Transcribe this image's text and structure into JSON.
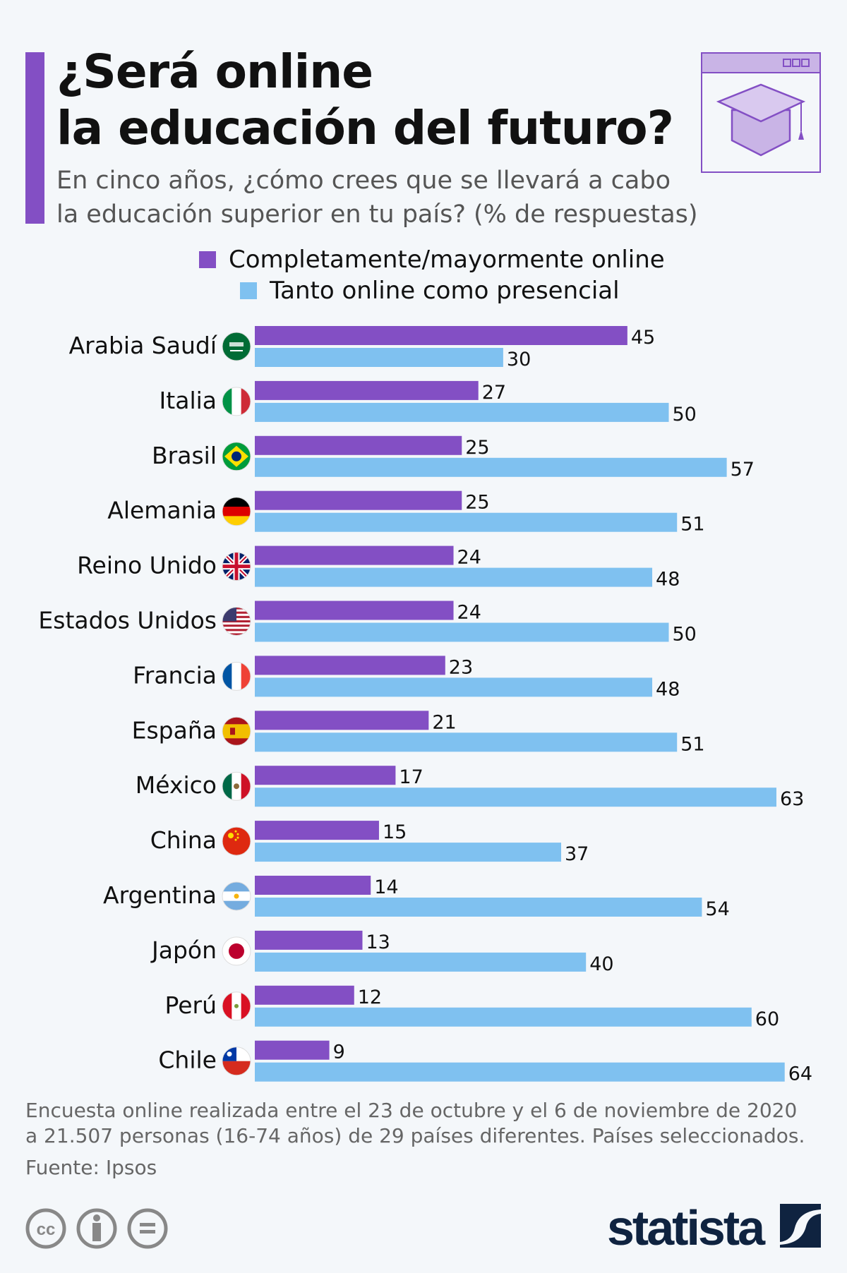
{
  "title_line1": "¿Será online",
  "title_line2": "la educación del futuro?",
  "subtitle_line1": "En cinco años, ¿cómo crees que se llevará a cabo",
  "subtitle_line2": "la educación superior en tu país? (% de respuestas)",
  "header_icon": "graduation-cap-browser-icon",
  "colors": {
    "online": "#834fc4",
    "hybrid": "#7fc1f0",
    "background": "#f4f7fa"
  },
  "chart_data": {
    "type": "bar",
    "orientation": "horizontal",
    "categories": [
      "Arabia Saudí",
      "Italia",
      "Brasil",
      "Alemania",
      "Reino Unido",
      "Estados Unidos",
      "Francia",
      "España",
      "México",
      "China",
      "Argentina",
      "Japón",
      "Perú",
      "Chile"
    ],
    "flags": [
      "saudi-arabia-flag-icon",
      "italy-flag-icon",
      "brazil-flag-icon",
      "germany-flag-icon",
      "uk-flag-icon",
      "usa-flag-icon",
      "france-flag-icon",
      "spain-flag-icon",
      "mexico-flag-icon",
      "china-flag-icon",
      "argentina-flag-icon",
      "japan-flag-icon",
      "peru-flag-icon",
      "chile-flag-icon"
    ],
    "series": [
      {
        "name": "Completamente/mayormente online",
        "color": "#834fc4",
        "values": [
          45,
          27,
          25,
          25,
          24,
          24,
          23,
          21,
          17,
          15,
          14,
          13,
          12,
          9
        ]
      },
      {
        "name": "Tanto online como presencial",
        "color": "#7fc1f0",
        "values": [
          30,
          50,
          57,
          51,
          48,
          50,
          48,
          51,
          63,
          37,
          54,
          40,
          60,
          64
        ]
      }
    ],
    "xlim": [
      0,
      64
    ],
    "grid": false,
    "legend_position": "top"
  },
  "footer": {
    "note_line1": "Encuesta online realizada entre el 23 de octubre y el 6 de noviembre de 2020",
    "note_line2": "a 21.507 personas (16-74 años) de 29 países diferentes. Países seleccionados.",
    "source": "Fuente: Ipsos",
    "license_icons": [
      "cc-icon",
      "attribution-icon",
      "no-derivatives-icon"
    ],
    "logo": "statista"
  }
}
